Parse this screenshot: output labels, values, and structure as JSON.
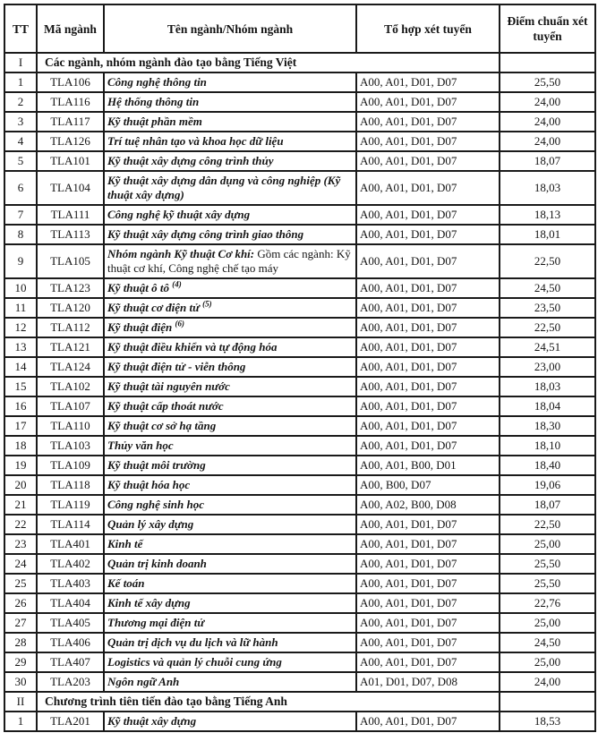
{
  "table": {
    "headers": {
      "tt": "TT",
      "code": "Mã ngành",
      "name": "Tên ngành/Nhóm ngành",
      "combo": "Tổ hợp xét tuyển",
      "score": "Điểm chuẩn xét tuyển"
    },
    "rows": [
      {
        "section": true,
        "tt": "I",
        "label": "Các ngành, nhóm ngành đào tạo bằng Tiếng Việt"
      },
      {
        "tt": "1",
        "code": "TLA106",
        "name": "Công nghệ thông tin",
        "combo": "A00, A01, D01, D07",
        "score": "25,50"
      },
      {
        "tt": "2",
        "code": "TLA116",
        "name": "Hệ thống thông tin",
        "combo": "A00, A01, D01, D07",
        "score": "24,00"
      },
      {
        "tt": "3",
        "code": "TLA117",
        "name": "Kỹ thuật phần mềm",
        "combo": "A00, A01, D01, D07",
        "score": "24,00"
      },
      {
        "tt": "4",
        "code": "TLA126",
        "name": "Trí tuệ nhân tạo và khoa học dữ liệu",
        "combo": "A00, A01, D01, D07",
        "score": "24,00"
      },
      {
        "tt": "5",
        "code": "TLA101",
        "name": "Kỹ thuật xây dựng công trình thủy",
        "combo": "A00, A01, D01, D07",
        "score": "18,07"
      },
      {
        "tt": "6",
        "code": "TLA104",
        "name": "Kỹ thuật xây dựng dân dụng và công nghiệp (Kỹ thuật xây dựng)",
        "combo": "A00, A01, D01, D07",
        "score": "18,03"
      },
      {
        "tt": "7",
        "code": "TLA111",
        "name": "Công nghệ kỹ thuật xây dựng",
        "combo": "A00, A01, D01, D07",
        "score": "18,13"
      },
      {
        "tt": "8",
        "code": "TLA113",
        "name": "Kỹ thuật xây dựng công trình giao thông",
        "combo": "A00, A01, D01, D07",
        "score": "18,01"
      },
      {
        "tt": "9",
        "code": "TLA105",
        "name": "Nhóm ngành Kỹ thuật Cơ khí:",
        "note": " Gồm các ngành: Kỹ thuật cơ khí, Công nghệ chế tạo máy",
        "combo": "A00, A01, D01, D07",
        "score": "22,50"
      },
      {
        "tt": "10",
        "code": "TLA123",
        "name": "Kỹ thuật ô tô ",
        "sup": "(4)",
        "combo": "A00, A01, D01, D07",
        "score": "24,50"
      },
      {
        "tt": "11",
        "code": "TLA120",
        "name": "Kỹ thuật cơ điện tử ",
        "sup": "(5)",
        "combo": "A00, A01, D01, D07",
        "score": "23,50"
      },
      {
        "tt": "12",
        "code": "TLA112",
        "name": "Kỹ thuật điện ",
        "sup": "(6)",
        "combo": "A00, A01, D01, D07",
        "score": "22,50"
      },
      {
        "tt": "13",
        "code": "TLA121",
        "name": "Kỹ thuật điều khiển và tự động hóa",
        "combo": "A00, A01, D01, D07",
        "score": "24,51"
      },
      {
        "tt": "14",
        "code": "TLA124",
        "name": "Kỹ thuật điện tử - viễn thông",
        "combo": "A00, A01, D01, D07",
        "score": "23,00"
      },
      {
        "tt": "15",
        "code": "TLA102",
        "name": "Kỹ thuật tài nguyên nước",
        "combo": "A00, A01, D01, D07",
        "score": "18,03"
      },
      {
        "tt": "16",
        "code": "TLA107",
        "name": "Kỹ thuật cấp thoát nước",
        "combo": "A00, A01, D01, D07",
        "score": "18,04"
      },
      {
        "tt": "17",
        "code": "TLA110",
        "name": "Kỹ thuật cơ sở hạ tầng",
        "combo": "A00, A01, D01, D07",
        "score": "18,30"
      },
      {
        "tt": "18",
        "code": "TLA103",
        "name": "Thủy văn học",
        "combo": "A00, A01, D01, D07",
        "score": "18,10"
      },
      {
        "tt": "19",
        "code": "TLA109",
        "name": "Kỹ thuật môi trường",
        "combo": "A00, A01, B00, D01",
        "score": "18,40"
      },
      {
        "tt": "20",
        "code": "TLA118",
        "name": "Kỹ thuật hóa học",
        "combo": "A00, B00, D07",
        "score": "19,06"
      },
      {
        "tt": "21",
        "code": "TLA119",
        "name": "Công nghệ sinh học",
        "combo": "A00, A02, B00, D08",
        "score": "18,07"
      },
      {
        "tt": "22",
        "code": "TLA114",
        "name": "Quản lý xây dựng",
        "combo": "A00, A01, D01, D07",
        "score": "22,50"
      },
      {
        "tt": "23",
        "code": "TLA401",
        "name": "Kinh tế",
        "combo": "A00, A01, D01, D07",
        "score": "25,00"
      },
      {
        "tt": "24",
        "code": "TLA402",
        "name": "Quản trị kinh doanh",
        "combo": "A00, A01, D01, D07",
        "score": "25,50"
      },
      {
        "tt": "25",
        "code": "TLA403",
        "name": "Kế toán",
        "combo": "A00, A01, D01, D07",
        "score": "25,50"
      },
      {
        "tt": "26",
        "code": "TLA404",
        "name": "Kinh tế xây dựng",
        "combo": "A00, A01, D01, D07",
        "score": "22,76"
      },
      {
        "tt": "27",
        "code": "TLA405",
        "name": "Thương mại điện tử",
        "combo": "A00, A01, D01, D07",
        "score": "25,00"
      },
      {
        "tt": "28",
        "code": "TLA406",
        "name": "Quản trị dịch vụ du lịch và lữ hành",
        "combo": "A00, A01, D01, D07",
        "score": "24,50"
      },
      {
        "tt": "29",
        "code": "TLA407",
        "name": "Logistics và quản lý chuỗi cung ứng",
        "combo": "A00, A01, D01, D07",
        "score": "25,00"
      },
      {
        "tt": "30",
        "code": "TLA203",
        "name": "Ngôn ngữ Anh",
        "combo": "A01, D01, D07, D08",
        "score": "24,00"
      },
      {
        "section": true,
        "tt": "II",
        "label": "Chương trình tiên tiến đào tạo bằng Tiếng Anh"
      },
      {
        "tt": "1",
        "code": "TLA201",
        "name": "Kỹ thuật xây dựng",
        "combo": "A00, A01, D01, D07",
        "score": "18,53"
      }
    ]
  },
  "colors": {
    "border": "#1a1a1a",
    "text": "#151515",
    "background": "#ffffff"
  }
}
